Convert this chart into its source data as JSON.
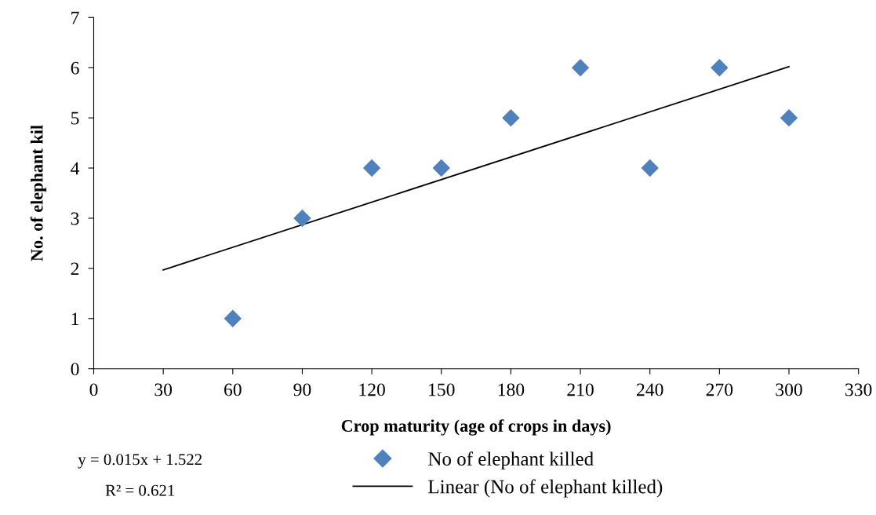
{
  "chart_data": {
    "type": "scatter",
    "xlabel": "Crop maturity (age of crops in days)",
    "ylabel": "No. of elephant kil",
    "x": [
      60,
      90,
      120,
      150,
      180,
      210,
      240,
      270,
      300
    ],
    "series": [
      {
        "name": "No of elephant killed",
        "color": "#4f81bd",
        "marker": "diamond",
        "values": [
          1,
          3,
          4,
          4,
          5,
          6,
          4,
          6,
          5
        ]
      },
      {
        "name": "Linear (No of elephant killed)",
        "type": "line",
        "color": "#000000",
        "x": [
          30,
          300
        ],
        "values": [
          1.97,
          6.02
        ]
      }
    ],
    "xlim": [
      0,
      330
    ],
    "xticks": [
      0,
      30,
      60,
      90,
      120,
      150,
      180,
      210,
      240,
      270,
      300,
      330
    ],
    "ylim": [
      0,
      7
    ],
    "yticks": [
      0,
      1,
      2,
      3,
      4,
      5,
      6,
      7
    ],
    "annotations": [
      "y = 0.015x + 1.522",
      "R² = 0.621"
    ],
    "legend": "bottom",
    "grid": false
  }
}
